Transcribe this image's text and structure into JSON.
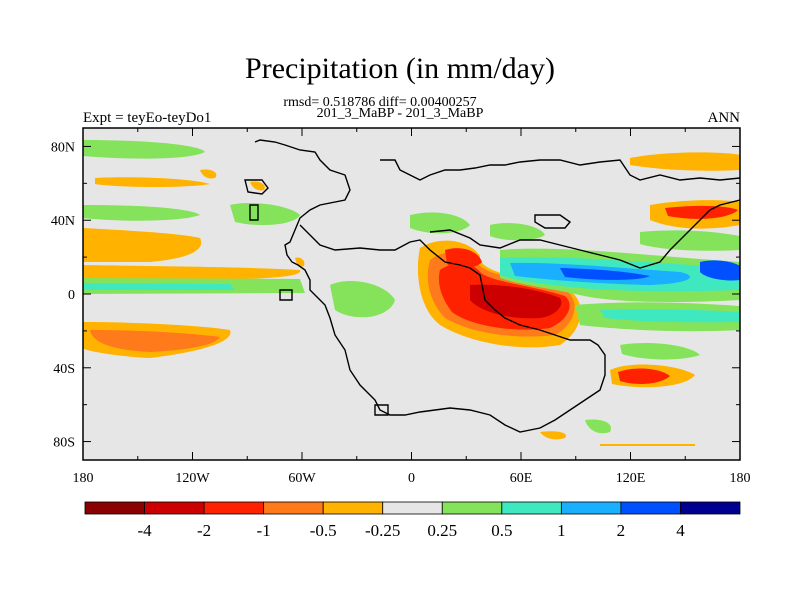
{
  "header": {
    "title": "Precipitation (in mm/day)",
    "stats": "rmsd= 0.518786 diff= 0.00400257",
    "cases": "201_3_MaBP - 201_3_MaBP",
    "left_label": "Expt = teyEo-teyDo1",
    "right_label": "ANN"
  },
  "chart_data": {
    "type": "heatmap",
    "title": "Precipitation (in mm/day)",
    "xlabel": "",
    "ylabel": "",
    "x_ticks": [
      "180",
      "120W",
      "60W",
      "0",
      "60E",
      "120E",
      "180"
    ],
    "y_ticks": [
      "80N",
      "40N",
      "0",
      "40S",
      "80S"
    ],
    "xlim": [
      -180,
      180
    ],
    "ylim": [
      -90,
      90
    ],
    "colorbar": {
      "levels": [
        "-4",
        "-2",
        "-1",
        "-0.5",
        "-0.25",
        "0.25",
        "0.5",
        "1",
        "2",
        "4"
      ],
      "colors": [
        "#8b0000",
        "#cc0000",
        "#ff2200",
        "#ff7a1a",
        "#ffb300",
        "#e6e6e6",
        "#84e35b",
        "#40e8c0",
        "#1aafff",
        "#0050ff",
        "#000090"
      ]
    },
    "background_color": "#e6e6e6",
    "regions": [
      {
        "value_class": "-0.5",
        "lon": [
          -180,
          -100
        ],
        "lat": [
          32,
          18
        ]
      },
      {
        "value_class": "-1",
        "lon": [
          -180,
          -95
        ],
        "lat": [
          -18,
          -32
        ]
      },
      {
        "value_class": "-0.5",
        "lon": [
          -180,
          -60
        ],
        "lat": [
          15,
          6
        ]
      },
      {
        "value_class": "0.5",
        "lon": [
          -180,
          -70
        ],
        "lat": [
          5,
          -2
        ]
      },
      {
        "value_class": "0.5",
        "lon": [
          -180,
          -140
        ],
        "lat": [
          86,
          78
        ]
      },
      {
        "value_class": "-4",
        "lon": [
          20,
          95
        ],
        "lat": [
          5,
          -25
        ]
      },
      {
        "value_class": "-1",
        "lon": [
          25,
          45
        ],
        "lat": [
          25,
          10
        ]
      },
      {
        "value_class": "2",
        "lon": [
          48,
          120
        ],
        "lat": [
          8,
          -1
        ]
      },
      {
        "value_class": "-1",
        "lon": [
          125,
          180
        ],
        "lat": [
          60,
          42
        ]
      },
      {
        "value_class": "-1",
        "lon": [
          112,
          145
        ],
        "lat": [
          -37,
          -50
        ]
      },
      {
        "value_class": "0.5",
        "lon": [
          -60,
          -30
        ],
        "lat": [
          2,
          -18
        ]
      }
    ]
  }
}
